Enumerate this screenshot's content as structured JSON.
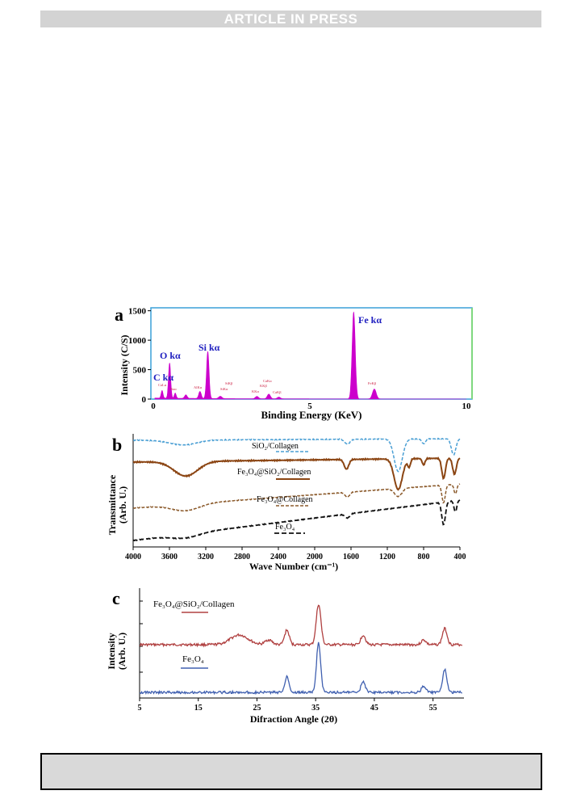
{
  "header": {
    "banner": "ARTICLE IN PRESS"
  },
  "panel_a": {
    "label": "a",
    "xlabel": "Binding Energy (KeV)",
    "ylabel": "Intensity (C/S)",
    "y_ticks": [
      "1500",
      "1000",
      "500",
      "0"
    ],
    "x_ticks": [
      "0",
      "5",
      "10"
    ],
    "annotations": [
      "C kα",
      "O kα",
      "Si kα",
      "Fe kα"
    ],
    "small_labels": [
      "CaLα",
      "Naα",
      "AlKα",
      "SiKβ",
      "SiKα",
      "KKα",
      "CaKα",
      "KKβ",
      "CaKβ",
      "FeKβ"
    ],
    "colors": {
      "spectrum": "#cc00cc",
      "frame": "#3aa0d8",
      "right_edge": "#7fd87f",
      "peak_label": "#2020c0"
    }
  },
  "panel_b": {
    "label": "b",
    "xlabel": "Wave Number (cm⁻¹)",
    "ylabel_line1": "Transmittance",
    "ylabel_line2": "(Arb. U.)",
    "x_ticks": [
      "4000",
      "3600",
      "3200",
      "2800",
      "2400",
      "2000",
      "1600",
      "1200",
      "800",
      "400"
    ],
    "series_labels": [
      "SiO₂/Collagen",
      "Fe₃O₄@SiO₂/Collagen",
      "Fe₃O₄@Collagen",
      "Fe₃O₄"
    ],
    "colors": {
      "sio2": "#4a9fd4",
      "fe3o4_sio2": "#8b4513",
      "fe3o4_col": "#8b5a2b",
      "fe3o4": "#111111"
    }
  },
  "panel_c": {
    "label": "c",
    "xlabel": "Difraction Angle (2θ)",
    "ylabel_line1": "Intensity",
    "ylabel_line2": "(Arb. U.)",
    "x_ticks": [
      "5",
      "15",
      "25",
      "35",
      "45",
      "55"
    ],
    "series_labels": [
      "Fe₃O₄@SiO₂/Collagen",
      "Fe₃O₄"
    ],
    "colors": {
      "top": "#b04040",
      "bottom": "#4060b0"
    }
  }
}
